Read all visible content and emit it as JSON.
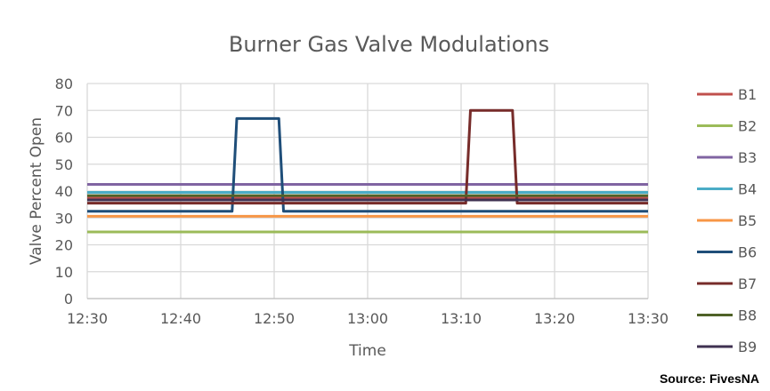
{
  "chart_data": {
    "type": "line",
    "title": "Burner Gas Valve Modulations",
    "xlabel": "Time",
    "ylabel": "Valve Percent Open",
    "ylim": [
      0,
      80
    ],
    "yticks": [
      "0",
      "10",
      "20",
      "30",
      "40",
      "50",
      "60",
      "70",
      "80"
    ],
    "xlim": [
      "12:30",
      "13:30"
    ],
    "xticks": [
      "12:30",
      "12:40",
      "12:50",
      "13:00",
      "13:10",
      "13:20",
      "13:30"
    ],
    "grid": true,
    "legend_position": "right",
    "series": [
      {
        "name": "B1",
        "color": "#c0504d",
        "points": [
          [
            "12:30",
            37.4
          ],
          [
            "13:30",
            37.4
          ]
        ]
      },
      {
        "name": "B2",
        "color": "#9bbb59",
        "points": [
          [
            "12:30",
            24.8
          ],
          [
            "13:30",
            24.8
          ]
        ]
      },
      {
        "name": "B3",
        "color": "#8064a2",
        "points": [
          [
            "12:30",
            42.5
          ],
          [
            "13:30",
            42.5
          ]
        ]
      },
      {
        "name": "B4",
        "color": "#4bacc6",
        "points": [
          [
            "12:30",
            39.5
          ],
          [
            "13:30",
            39.5
          ]
        ]
      },
      {
        "name": "B5",
        "color": "#f79646",
        "points": [
          [
            "12:30",
            30.6
          ],
          [
            "13:30",
            30.6
          ]
        ]
      },
      {
        "name": "B6",
        "color": "#1f4e79",
        "points": [
          [
            "12:30",
            32.5
          ],
          [
            "12:45.5",
            32.5
          ],
          [
            "12:46",
            67
          ],
          [
            "12:50.5",
            67
          ],
          [
            "12:51",
            32.5
          ],
          [
            "13:30",
            32.5
          ]
        ]
      },
      {
        "name": "B7",
        "color": "#772c2a",
        "points": [
          [
            "12:30",
            35.5
          ],
          [
            "13:10.5",
            35.5
          ],
          [
            "13:11",
            70
          ],
          [
            "13:15.5",
            70
          ],
          [
            "13:16",
            35.5
          ],
          [
            "13:30",
            35.5
          ]
        ]
      },
      {
        "name": "B8",
        "color": "#4f6228",
        "points": [
          [
            "12:30",
            38.3
          ],
          [
            "13:30",
            38.3
          ]
        ]
      },
      {
        "name": "B9",
        "color": "#3f3151",
        "points": [
          [
            "12:30",
            36.7
          ],
          [
            "13:30",
            36.7
          ]
        ]
      }
    ]
  },
  "source": "Source: FivesNA"
}
